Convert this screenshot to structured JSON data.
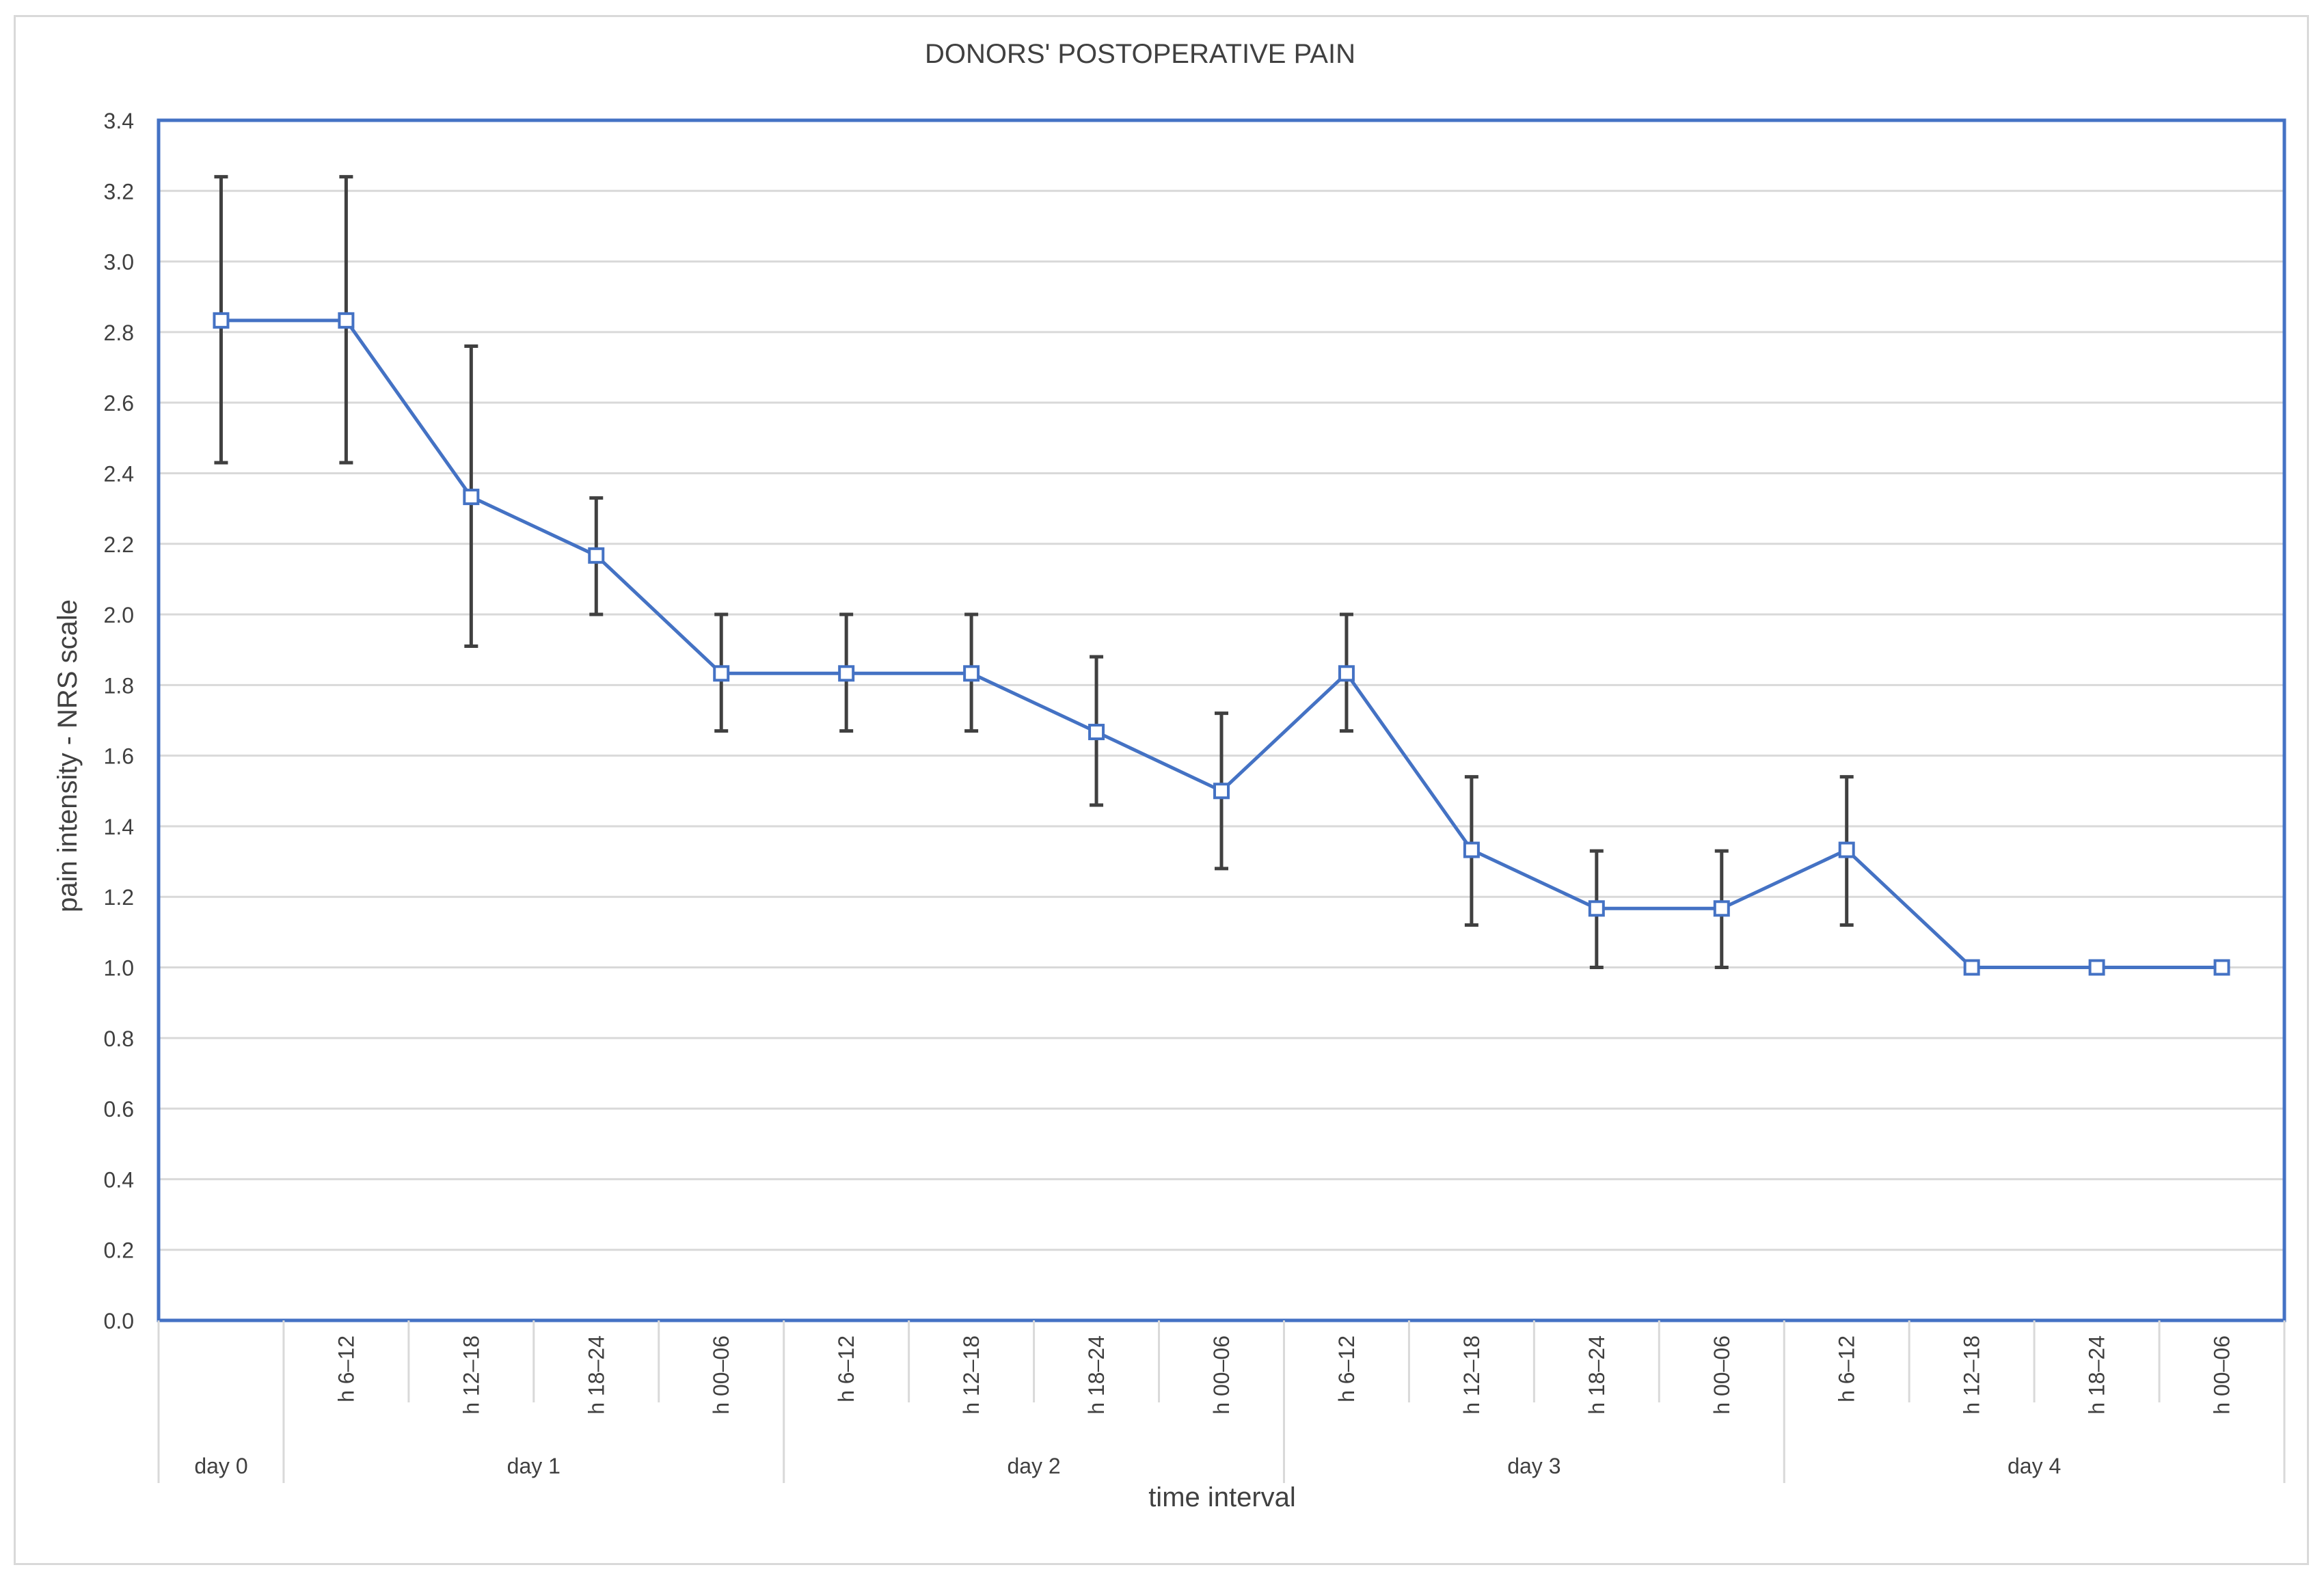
{
  "chart_data": {
    "type": "line",
    "title": "DONORS' POSTOPERATIVE PAIN",
    "xlabel": "time interval",
    "ylabel": "pain intensity - NRS scale",
    "ylim": [
      0,
      3.4
    ],
    "yticks": [
      "0.0",
      "0.2",
      "0.4",
      "0.6",
      "0.8",
      "1.0",
      "1.2",
      "1.4",
      "1.6",
      "1.8",
      "2.0",
      "2.2",
      "2.4",
      "2.6",
      "2.8",
      "3.0",
      "3.2",
      "3.4"
    ],
    "categories": [
      "",
      "h 6–12",
      "h 12–18",
      "h 18–24",
      "h 00–06",
      "h 6–12",
      "h 12–18",
      "h 18–24",
      "h 00–06",
      "h 6–12",
      "h 12–18",
      "h 18–24",
      "h 00–06",
      "h 6–12",
      "h 12–18",
      "h 18–24",
      "h 00–06"
    ],
    "groups": [
      {
        "label": "day 0",
        "count": 1
      },
      {
        "label": "day 1",
        "count": 4
      },
      {
        "label": "day 2",
        "count": 4
      },
      {
        "label": "day 3",
        "count": 4
      },
      {
        "label": "day 4",
        "count": 4
      }
    ],
    "series": [
      {
        "values": [
          2.833,
          2.833,
          2.333,
          2.167,
          1.833,
          1.833,
          1.833,
          1.667,
          1.5,
          1.833,
          1.333,
          1.167,
          1.167,
          1.333,
          1.0,
          1.0,
          1.0
        ],
        "error_low": [
          2.43,
          2.43,
          1.91,
          2.0,
          1.67,
          1.67,
          1.67,
          1.46,
          1.28,
          1.67,
          1.12,
          1.0,
          1.0,
          1.12,
          1.0,
          1.0,
          1.0
        ],
        "error_high": [
          3.24,
          3.24,
          2.76,
          2.33,
          2.0,
          2.0,
          2.0,
          1.88,
          1.72,
          2.0,
          1.54,
          1.33,
          1.33,
          1.54,
          1.0,
          1.0,
          1.0
        ]
      }
    ],
    "colors": {
      "line": "#4472c4",
      "error_bar": "#404040",
      "grid": "#d9d9d9",
      "plot_border": "#4472c4",
      "text": "#404040"
    },
    "grid": true,
    "legend": "none"
  }
}
